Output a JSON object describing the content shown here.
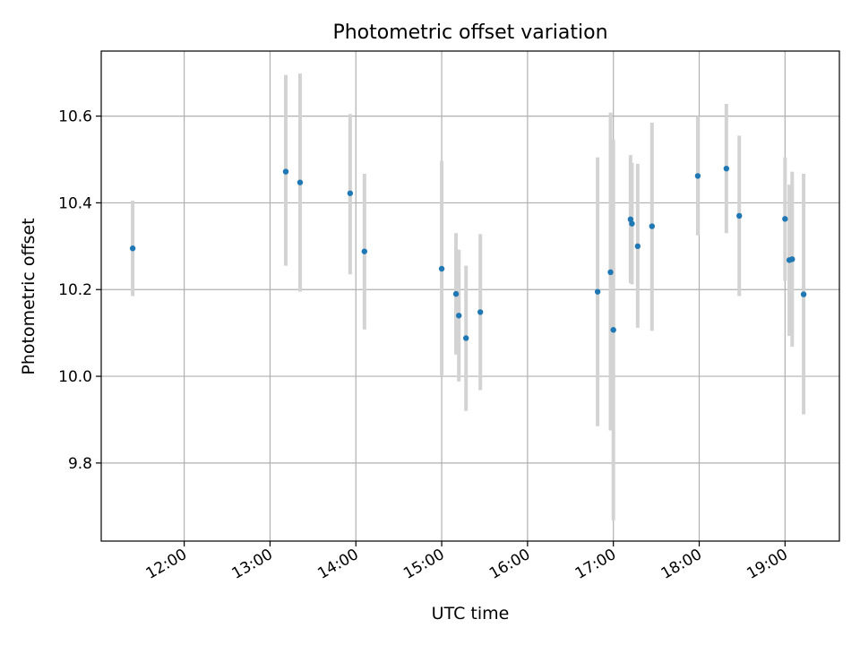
{
  "chart_data": {
    "type": "scatter",
    "title": "Photometric offset variation",
    "xlabel": "UTC time",
    "ylabel": "Photometric offset",
    "x_axis": "time",
    "xlim": [
      "11:02",
      "19:38"
    ],
    "ylim": [
      9.62,
      10.75
    ],
    "x_ticks": [
      "12:00",
      "13:00",
      "14:00",
      "15:00",
      "16:00",
      "17:00",
      "18:00",
      "19:00"
    ],
    "y_ticks": [
      9.8,
      10.0,
      10.2,
      10.4,
      10.6
    ],
    "grid": true,
    "colors": {
      "point": "#1f77b4",
      "errorbar": "#d3d3d3",
      "grid": "#b0b0b0"
    },
    "points": [
      {
        "x": "11:24",
        "y": 10.295,
        "ymin": 10.185,
        "ymax": 10.405
      },
      {
        "x": "13:11",
        "y": 10.472,
        "ymin": 10.255,
        "ymax": 10.695
      },
      {
        "x": "13:21",
        "y": 10.447,
        "ymin": 10.195,
        "ymax": 10.698
      },
      {
        "x": "13:56",
        "y": 10.422,
        "ymin": 10.235,
        "ymax": 10.605
      },
      {
        "x": "14:06",
        "y": 10.288,
        "ymin": 10.108,
        "ymax": 10.467
      },
      {
        "x": "15:00",
        "y": 10.248,
        "ymin": 10.0,
        "ymax": 10.497
      },
      {
        "x": "15:10",
        "y": 10.19,
        "ymin": 10.05,
        "ymax": 10.33
      },
      {
        "x": "15:12",
        "y": 10.14,
        "ymin": 9.988,
        "ymax": 10.292
      },
      {
        "x": "15:17",
        "y": 10.088,
        "ymin": 9.92,
        "ymax": 10.255
      },
      {
        "x": "15:27",
        "y": 10.148,
        "ymin": 9.968,
        "ymax": 10.328
      },
      {
        "x": "16:49",
        "y": 10.195,
        "ymin": 9.885,
        "ymax": 10.505
      },
      {
        "x": "16:58",
        "y": 10.24,
        "ymin": 9.875,
        "ymax": 10.608
      },
      {
        "x": "17:00",
        "y": 10.107,
        "ymin": 9.668,
        "ymax": 10.545
      },
      {
        "x": "17:12",
        "y": 10.362,
        "ymin": 10.215,
        "ymax": 10.51
      },
      {
        "x": "17:13",
        "y": 10.352,
        "ymin": 10.212,
        "ymax": 10.492
      },
      {
        "x": "17:17",
        "y": 10.3,
        "ymin": 10.112,
        "ymax": 10.49
      },
      {
        "x": "17:27",
        "y": 10.346,
        "ymin": 10.105,
        "ymax": 10.585
      },
      {
        "x": "17:59",
        "y": 10.462,
        "ymin": 10.325,
        "ymax": 10.6
      },
      {
        "x": "18:19",
        "y": 10.479,
        "ymin": 10.33,
        "ymax": 10.628
      },
      {
        "x": "18:28",
        "y": 10.37,
        "ymin": 10.185,
        "ymax": 10.555
      },
      {
        "x": "19:00",
        "y": 10.363,
        "ymin": 10.22,
        "ymax": 10.505
      },
      {
        "x": "19:03",
        "y": 10.268,
        "ymin": 10.093,
        "ymax": 10.442
      },
      {
        "x": "19:05",
        "y": 10.27,
        "ymin": 10.068,
        "ymax": 10.472
      },
      {
        "x": "19:13",
        "y": 10.189,
        "ymin": 9.912,
        "ymax": 10.467
      }
    ]
  }
}
